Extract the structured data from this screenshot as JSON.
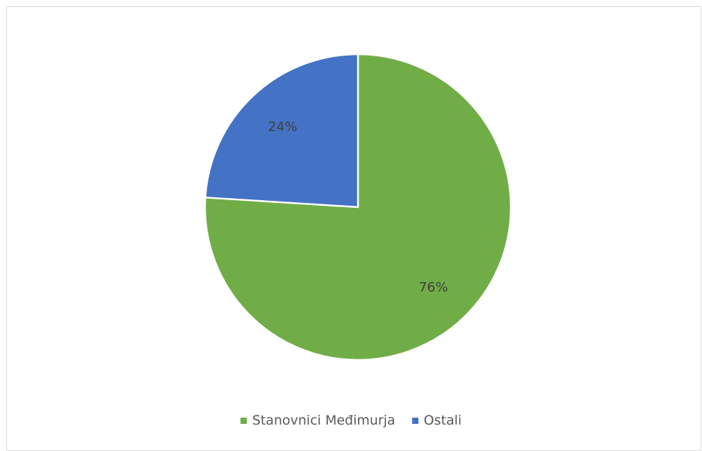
{
  "chart_data": {
    "type": "pie",
    "title": "",
    "slices": [
      {
        "label": "Stanovnici Međimurja",
        "value": 76,
        "display": "76%",
        "color": "#70ad47"
      },
      {
        "label": "Ostali",
        "value": 24,
        "display": "24%",
        "color": "#4472c4"
      }
    ],
    "legend_position": "bottom"
  }
}
